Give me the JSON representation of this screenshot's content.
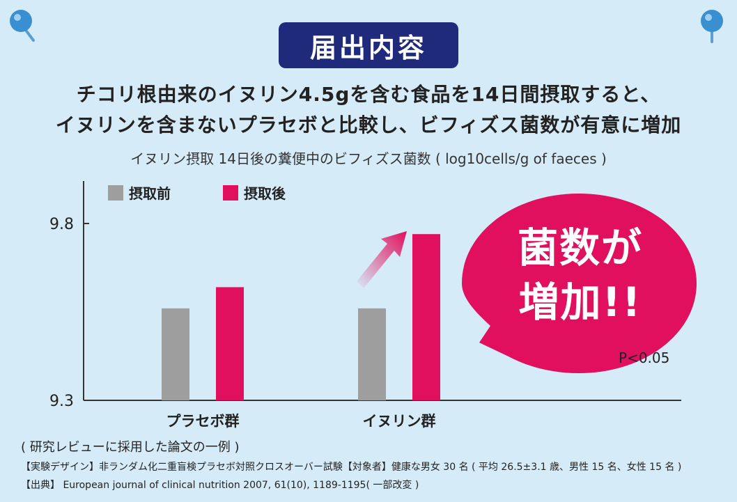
{
  "badge": "届出内容",
  "headline": {
    "line1": "チコリ根由来のイヌリン4.5gを含む食品を14日間摂取すると、",
    "line2": "イヌリンを含まないプラセボと比較し、ビフィズス菌数が有意に増加"
  },
  "bubble": {
    "line1": "菌数が",
    "line2": "増加!!"
  },
  "p_value": "P<0.05",
  "note": "( 研究レビューに採用した論文の一例 )",
  "footnotes": {
    "design": "【実験デザイン】非ランダム化二重盲検プラセボ対照クロスオーバー試験【対象者】健康な男女 30 名 ( 平均 26.5±3.1 歳、男性 15 名、女性 15 名 )",
    "source": "【出典】 European journal of clinical nutrition 2007, 61(10), 1189-1195( 一部改変 )"
  },
  "colors": {
    "before": "#9e9e9e",
    "after": "#e0105e",
    "badge": "#1f2a7a",
    "background": "#d6ebf8"
  },
  "icons": {
    "pins": "pushpin-icon",
    "arrow": "trend-arrow-icon"
  },
  "chart_data": {
    "type": "bar",
    "title": "イヌリン摂取 14日後の糞便中のビフィズス菌数 ( log10cells/g of faeces )",
    "categories": [
      "プラセボ群",
      "イヌリン群"
    ],
    "series": [
      {
        "name": "摂取前",
        "values": [
          9.56,
          9.56
        ]
      },
      {
        "name": "摂取後",
        "values": [
          9.62,
          9.77
        ]
      }
    ],
    "ylim": [
      9.3,
      9.8
    ],
    "yticks": [
      "9.3",
      "9.8"
    ],
    "grid": false,
    "legend": "top-left"
  }
}
